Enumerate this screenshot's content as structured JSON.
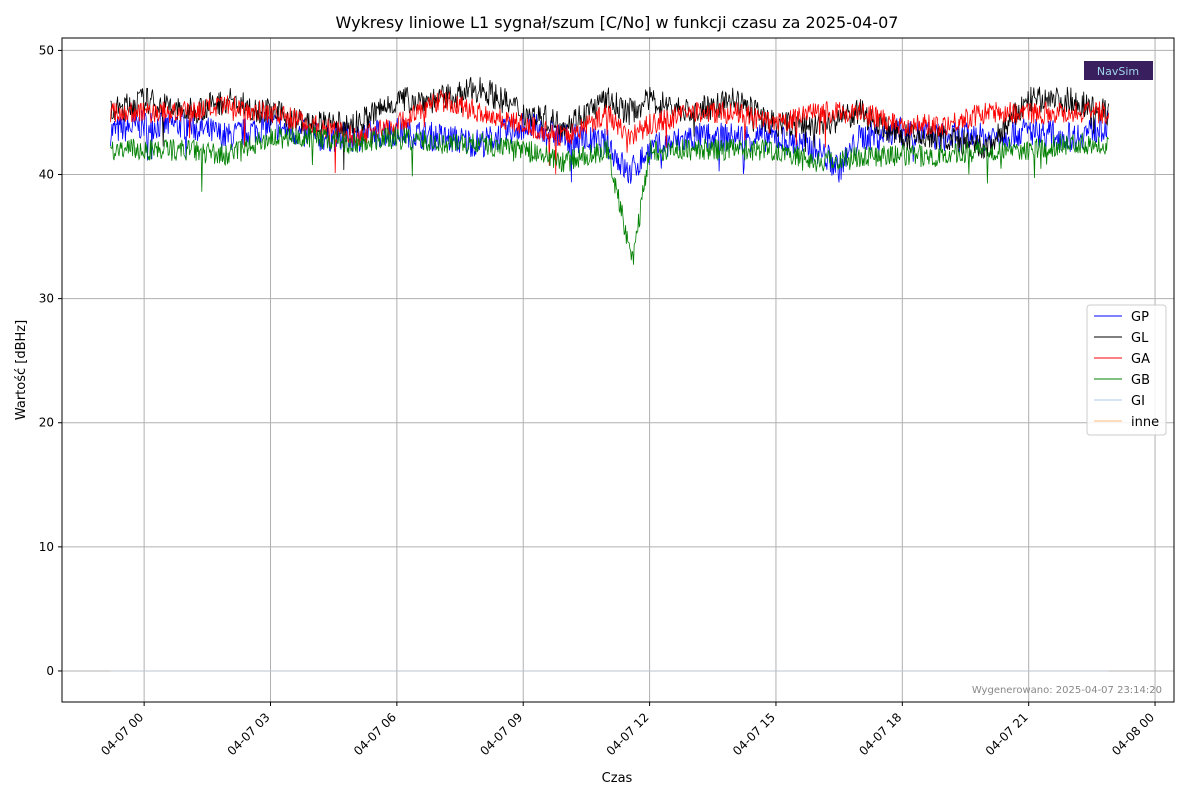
{
  "chart_data": {
    "type": "line",
    "title": "Wykresy liniowe L1 sygnał/szum [C/No] w funkcji czasu za 2025-04-07",
    "xlabel": "Czas",
    "ylabel": "Wartość [dBHz]",
    "x_range_hours": [
      -1.95,
      24.45
    ],
    "ylim": [
      -2.5,
      51
    ],
    "data_span_hours": [
      -1.1,
      22.9
    ],
    "x_ticks": [
      {
        "hour": 0,
        "label": "04-07 00"
      },
      {
        "hour": 3,
        "label": "04-07 03"
      },
      {
        "hour": 6,
        "label": "04-07 06"
      },
      {
        "hour": 9,
        "label": "04-07 09"
      },
      {
        "hour": 12,
        "label": "04-07 12"
      },
      {
        "hour": 15,
        "label": "04-07 15"
      },
      {
        "hour": 18,
        "label": "04-07 18"
      },
      {
        "hour": 21,
        "label": "04-07 21"
      },
      {
        "hour": 24,
        "label": "04-08 00"
      }
    ],
    "y_ticks": [
      0,
      10,
      20,
      30,
      40,
      50
    ],
    "grid": true,
    "legend_position": "right",
    "series": [
      {
        "name": "GP",
        "color": "#0000ff",
        "hours": [
          -0.8,
          0,
          1,
          2,
          3,
          4,
          5,
          6,
          7,
          8,
          9,
          10,
          11,
          11.5,
          12,
          13,
          14,
          15,
          16,
          16.5,
          17,
          18,
          19,
          20,
          21,
          22,
          22.9
        ],
        "values": [
          43.5,
          44,
          44,
          43,
          44,
          43,
          43,
          43.5,
          43,
          42.5,
          44,
          43,
          42.5,
          40,
          42,
          43,
          43,
          43,
          42,
          40.5,
          43,
          43.5,
          43,
          43,
          43.5,
          43,
          44
        ]
      },
      {
        "name": "GL",
        "color": "#000000",
        "hours": [
          -0.8,
          0,
          1,
          2,
          3,
          4,
          5,
          6,
          7,
          8,
          9,
          10,
          11,
          11.5,
          12,
          13,
          14,
          15,
          16,
          17,
          18,
          19,
          20,
          21,
          22,
          22.9
        ],
        "values": [
          45,
          46,
          45,
          46,
          45,
          44,
          44,
          46,
          46,
          47,
          45,
          44,
          46,
          45,
          46,
          45,
          46,
          44,
          44,
          45,
          43,
          43,
          42,
          46,
          46,
          45
        ]
      },
      {
        "name": "GA",
        "color": "#ff0000",
        "hours": [
          -0.8,
          0,
          1,
          2,
          3,
          4,
          5,
          6,
          7,
          8,
          9,
          10,
          11,
          11.5,
          12,
          13,
          14,
          15,
          16,
          17,
          18,
          19,
          20,
          21,
          22,
          22.9
        ],
        "values": [
          45,
          45,
          45,
          45.5,
          45,
          44,
          43,
          44,
          46,
          45,
          44,
          43,
          45,
          43,
          44,
          45,
          45,
          44,
          45,
          45,
          44,
          44,
          45,
          45,
          45,
          45
        ]
      },
      {
        "name": "GB",
        "color": "#008000",
        "hours": [
          -0.8,
          0,
          1,
          2,
          3,
          4,
          5,
          6,
          7,
          8,
          9,
          10,
          11,
          11.6,
          12,
          13,
          14,
          15,
          16,
          17,
          18,
          19,
          20,
          21,
          22,
          22.9
        ],
        "values": [
          42,
          42,
          42,
          41.5,
          43,
          43,
          42.5,
          43,
          42.5,
          42.5,
          42,
          41,
          42,
          33,
          42,
          42,
          42,
          42,
          41,
          41.5,
          41.5,
          41.5,
          42,
          42,
          42.5,
          42.5
        ]
      },
      {
        "name": "GI",
        "color": "#aec7e8",
        "hours": [
          -0.8,
          22.9
        ],
        "values": [
          0,
          0
        ]
      },
      {
        "name": "inne",
        "color": "#ffbb78",
        "hours": [
          -0.8,
          22.9
        ],
        "values": [
          0,
          0
        ]
      }
    ]
  },
  "watermark": "Wygenerowano: 2025-04-07 23:14:20",
  "logo_text": "NavSim"
}
